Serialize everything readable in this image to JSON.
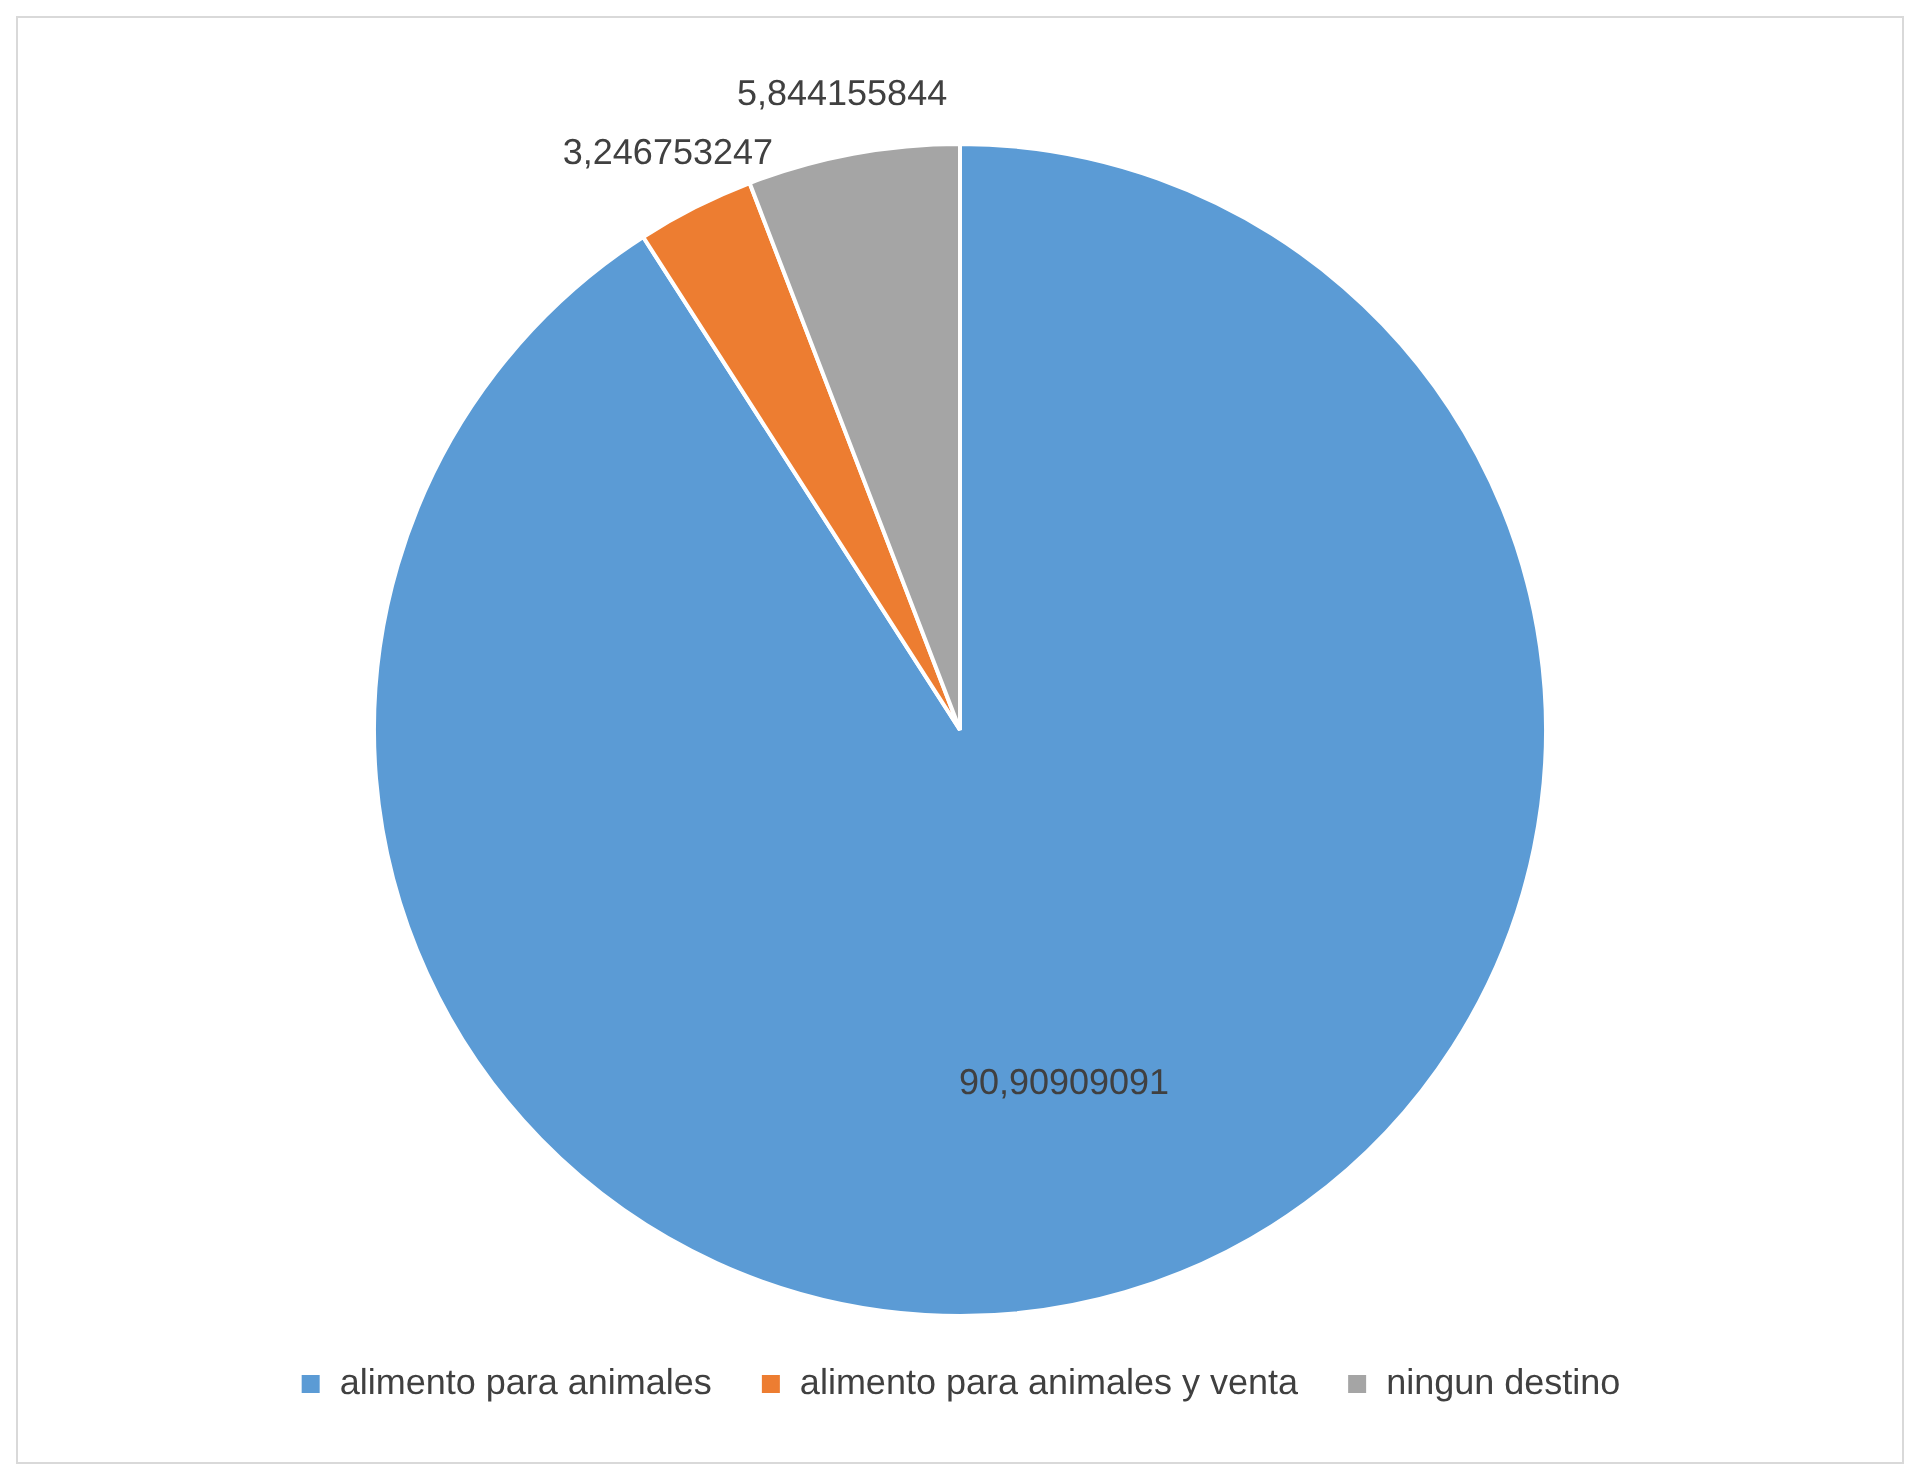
{
  "chart_data": {
    "type": "pie",
    "categories": [
      "alimento para animales",
      "alimento para animales y venta",
      "ningun destino"
    ],
    "values": [
      90.90909091,
      3.246753247,
      5.844155844
    ],
    "colors": [
      "#5b9bd5",
      "#ed7d31",
      "#a5a5a5"
    ],
    "value_labels": [
      "90,90909091",
      "3,246753247",
      "5,844155844"
    ],
    "legend": "bottom"
  }
}
